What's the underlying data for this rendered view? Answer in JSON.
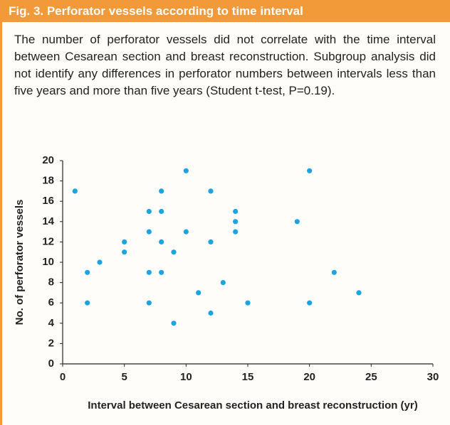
{
  "figure_title": "Fig. 3. Perforator vessels according to time interval",
  "caption": "The number of perforator vessels did not correlate with the time interval between Cesarean section and breast reconstruction. Subgroup analysis did not identify any differences in perforator numbers between intervals less than five years and more than five years (Student t-test, P=0.19).",
  "chart_data": {
    "type": "scatter",
    "xlabel": "Interval between Cesarean section and breast reconstruction (yr)",
    "ylabel": "No. of perforator vessels",
    "x": [
      1,
      2,
      2,
      3,
      5,
      5,
      7,
      7,
      7,
      7,
      8,
      8,
      8,
      8,
      9,
      9,
      10,
      10,
      11,
      12,
      12,
      12,
      13,
      14,
      14,
      14,
      15,
      19,
      20,
      20,
      22,
      24
    ],
    "values": [
      17,
      9,
      6,
      10,
      12,
      11,
      15,
      13,
      9,
      6,
      17,
      15,
      12,
      9,
      11,
      4,
      19,
      13,
      7,
      17,
      12,
      5,
      8,
      15,
      14,
      13,
      6,
      14,
      19,
      6,
      9,
      7
    ],
    "color": "#1da4e0",
    "xlim": [
      0,
      30
    ],
    "xticks": [
      0,
      5,
      10,
      15,
      20,
      25,
      30
    ],
    "ylim": [
      0,
      20
    ],
    "yticks": [
      0,
      2,
      4,
      6,
      8,
      10,
      12,
      14,
      16,
      18,
      20
    ]
  }
}
